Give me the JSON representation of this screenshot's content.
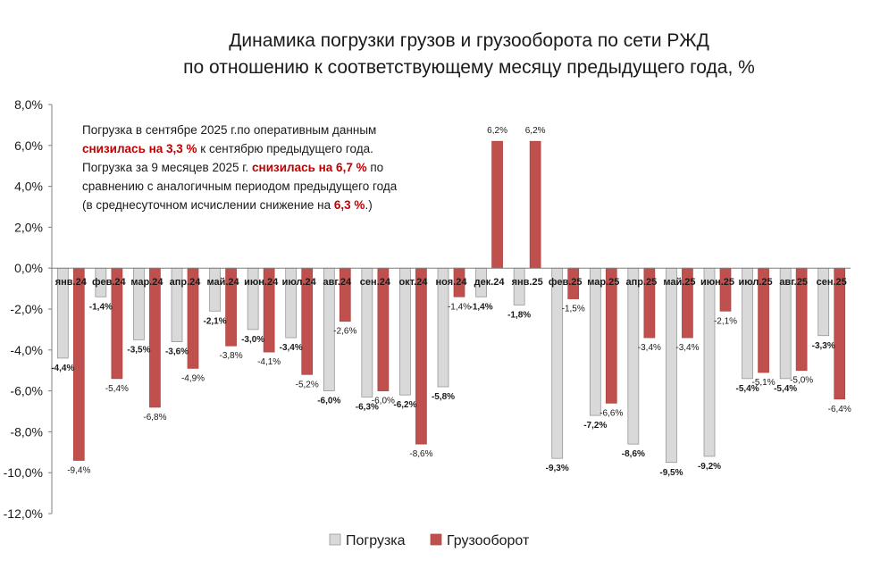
{
  "chart_data": {
    "type": "bar",
    "title": [
      "Динамика  погрузки грузов и грузооборота по сети РЖД",
      "по отношению к соответствующему месяцу предыдущего года, %"
    ],
    "categories": [
      "янв.24",
      "фев.24",
      "мар.24",
      "апр.24",
      "май.24",
      "июн.24",
      "июл.24",
      "авг.24",
      "сен.24",
      "окт.24",
      "ноя.24",
      "дек.24",
      "янв.25",
      "фев.25",
      "мар.25",
      "апр.25",
      "май.25",
      "июн.25",
      "июл.25",
      "авг.25",
      "сен.25"
    ],
    "series": [
      {
        "name": "Погрузка",
        "color": "#d9d9d9",
        "values": [
          -4.4,
          -1.4,
          -3.5,
          -3.6,
          -2.1,
          -3.0,
          -3.4,
          -6.0,
          -6.3,
          -6.2,
          -5.8,
          -1.4,
          -1.8,
          -9.3,
          -7.2,
          -8.6,
          -9.5,
          -9.2,
          -5.4,
          -5.4,
          -3.3
        ],
        "labels": [
          "-4,4%",
          "-1,4%",
          "-3,5%",
          "-3,6%",
          "-2,1%",
          "-3,0%",
          "-3,4%",
          "-6,0%",
          "-6,3%",
          "-6,2%",
          "-5,8%",
          "-1,4%",
          "-1,8%",
          "-9,3%",
          "-7,2%",
          "-8,6%",
          "-9,5%",
          "-9,2%",
          "-5,4%",
          "-5,4%",
          "-3,3%"
        ]
      },
      {
        "name": "Грузооборот",
        "color": "#c0504d",
        "values": [
          -9.4,
          -5.4,
          -6.8,
          -4.9,
          -3.8,
          -4.1,
          -5.2,
          -2.6,
          -6.0,
          -8.6,
          -1.4,
          6.2,
          6.2,
          -1.5,
          -6.6,
          -3.4,
          -3.4,
          -2.1,
          -5.1,
          -5.0,
          -6.4
        ],
        "labels": [
          "-9,4%",
          "-5,4%",
          "-6,8%",
          "-4,9%",
          "-3,8%",
          "-4,1%",
          "-5,2%",
          "-2,6%",
          "-6,0%",
          "-8,6%",
          "-1,4%",
          "6,2%",
          "6,2%",
          "-1,5%",
          "-6,6%",
          "-3,4%",
          "-3,4%",
          "-2,1%",
          "-5,1%",
          "-5,0%",
          "-6,4%"
        ]
      }
    ],
    "ylim": [
      -12,
      8
    ],
    "yticks": [
      8,
      6,
      4,
      2,
      0,
      -2,
      -4,
      -6,
      -8,
      -10,
      -12
    ],
    "ytick_labels": [
      "8,0%",
      "6,0%",
      "4,0%",
      "2,0%",
      "0,0%",
      "-2,0%",
      "-4,0%",
      "-6,0%",
      "-8,0%",
      "-10,0%",
      "-12,0%"
    ],
    "grid": false,
    "legend": "bottom-center",
    "annotation": {
      "lines": [
        [
          {
            "t": "Погрузка в сентябре 2025 г.по оперативным данным",
            "hl": false
          }
        ],
        [
          {
            "t": "снизилась на 3,3 %",
            "hl": true
          },
          {
            "t": " к сентябрю предыдущего года.",
            "hl": false
          }
        ],
        [
          {
            "t": "Погрузка за 9 месяцев 2025 г. ",
            "hl": false
          },
          {
            "t": "снизилась на 6,7 %",
            "hl": true
          },
          {
            "t": " по",
            "hl": false
          }
        ],
        [
          {
            "t": "сравнению с аналогичным периодом предыдущего года",
            "hl": false
          }
        ],
        [
          {
            "t": "(в среднесуточном исчислении снижение на ",
            "hl": false
          },
          {
            "t": "6,3 %",
            "hl": true
          },
          {
            "t": ".)",
            "hl": false
          }
        ]
      ]
    }
  }
}
